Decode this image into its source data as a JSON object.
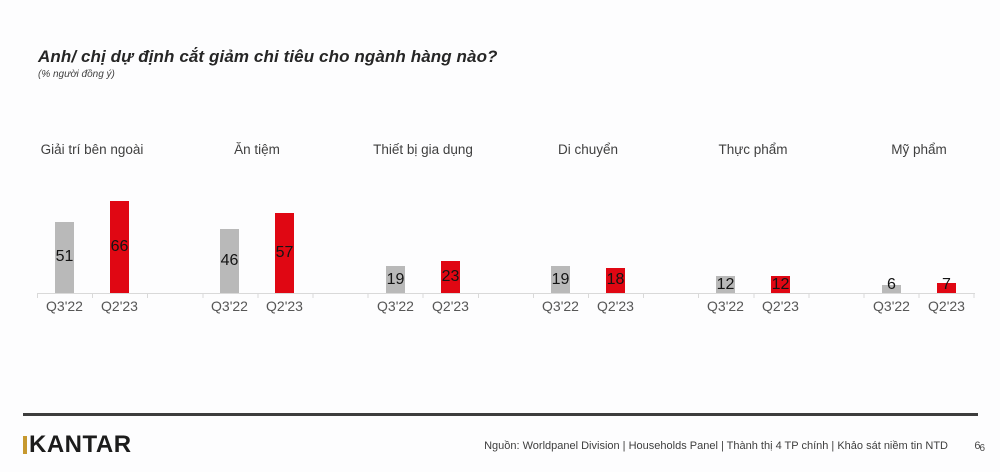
{
  "title": "Anh/ chị dự định cắt giảm chi tiêu cho ngành hàng nào?",
  "subtitle": "(% người đồng ý)",
  "chart_data": {
    "type": "bar",
    "title": "Anh/ chị dự định cắt giảm chi tiêu cho ngành hàng nào?",
    "unit_note": "(% người đồng ý)",
    "categories": [
      "Giải trí bên ngoài",
      "Ăn tiệm",
      "Thiết bị gia dụng",
      "Di chuyển",
      "Thực phẩm",
      "Mỹ phẩm"
    ],
    "series": [
      {
        "name": "Q3'22",
        "color": "#b9b9b9",
        "values": [
          51,
          46,
          19,
          19,
          12,
          6
        ]
      },
      {
        "name": "Q2'23",
        "color": "#e00713",
        "values": [
          66,
          57,
          23,
          18,
          12,
          7
        ]
      }
    ],
    "ylim": [
      0,
      70
    ],
    "grid": false,
    "value_axis_visible": false,
    "legend_position": "none",
    "value_labels": "inside-bar"
  },
  "footer": {
    "logo": "KANTAR",
    "source": "Nguồn: Worldpanel Division | Households Panel | Thành thị 4 TP chính | Khảo sát niềm tin NTD",
    "page_number_a": "6",
    "page_number_b": "6"
  },
  "colors": {
    "bar_gray": "#b9b9b9",
    "bar_red": "#e00713",
    "axis_line": "#d9d9d9",
    "footer_rule": "#3d3d3d",
    "logo_gold": "#c7992f"
  }
}
